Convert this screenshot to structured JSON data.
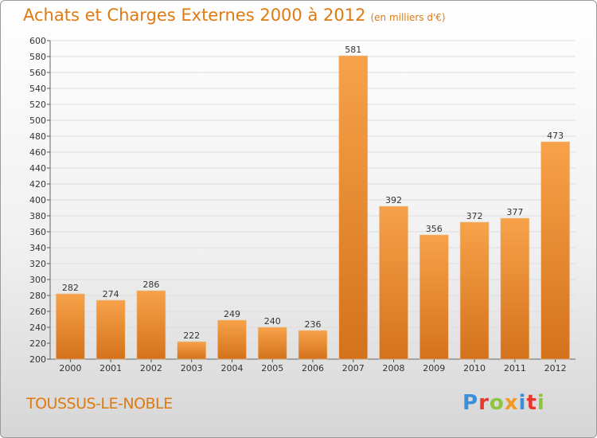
{
  "header": {
    "title": "Achats et Charges Externes 2000 à 2012",
    "unit": "(en milliers d'€)"
  },
  "footer": {
    "city": "TOUSSUS-LE-NOBLE",
    "logo_text": "Proxiti",
    "logo_letters": [
      {
        "char": "P",
        "color": "#3a8fd8"
      },
      {
        "char": "r",
        "color": "#e8382d"
      },
      {
        "char": "o",
        "color": "#8cc63f"
      },
      {
        "char": "x",
        "color": "#f29a1f"
      },
      {
        "char": "i",
        "color": "#3a8fd8"
      },
      {
        "char": "t",
        "color": "#e8382d"
      },
      {
        "char": "i",
        "color": "#8cc63f"
      }
    ]
  },
  "colors": {
    "bar_light": "#f7a24a",
    "bar_dark": "#d4721c",
    "title": "#e07a10",
    "grid": "#dddddd"
  },
  "chart_data": {
    "type": "bar",
    "categories": [
      "2000",
      "2001",
      "2002",
      "2003",
      "2004",
      "2005",
      "2006",
      "2007",
      "2008",
      "2009",
      "2010",
      "2011",
      "2012"
    ],
    "values": [
      282,
      274,
      286,
      222,
      249,
      240,
      236,
      581,
      392,
      356,
      372,
      377,
      473
    ],
    "ylim": [
      200,
      600
    ],
    "yticks": [
      200,
      220,
      240,
      260,
      280,
      300,
      320,
      340,
      360,
      380,
      400,
      420,
      440,
      460,
      480,
      500,
      520,
      540,
      560,
      580,
      600
    ],
    "grid": true,
    "data_labels": true
  }
}
